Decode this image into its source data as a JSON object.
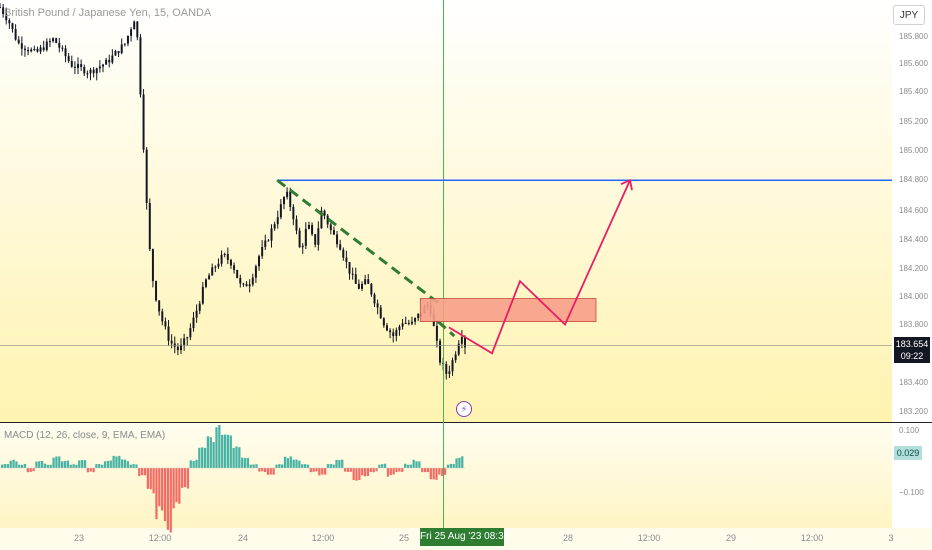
{
  "header": {
    "symbol_title": "British Pound / Japanese Yen, 15, OANDA",
    "currency_button": "JPY"
  },
  "price_tag": {
    "price": "183.654",
    "countdown": "09:22"
  },
  "macd": {
    "title": "MACD (12, 26, close, 9, EMA, EMA)",
    "value_tag": "0.029"
  },
  "crosshair_time_label": "Fri 25 Aug '23   08:30",
  "colors": {
    "bull": "#26a69a",
    "bear": "#ef5350",
    "candle": "#131722",
    "resistance": "#2962ff",
    "trendline": "#2e7d32",
    "zone_fill": "#f7a08a",
    "zone_border": "#c0392b",
    "projection": "#e91e63",
    "crosshair": "#4caf50"
  },
  "chart_data": [
    {
      "type": "candlestick",
      "symbol": "British Pound / Japanese Yen",
      "interval": "15",
      "source": "OANDA",
      "y_axis_ticks": [
        "185.800",
        "185.600",
        "185.400",
        "185.200",
        "185.000",
        "184.800",
        "184.600",
        "184.400",
        "184.200",
        "184.000",
        "183.800",
        "183.400",
        "183.200"
      ],
      "x_axis_ticks": [
        "23",
        "12:00",
        "24",
        "12:00",
        "25",
        "28",
        "12:00",
        "29",
        "12:00",
        "3"
      ],
      "ylim": [
        183.2,
        186.0
      ],
      "last_price": 183.654,
      "price_path": [
        {
          "t": 0,
          "p": 186.0
        },
        {
          "t": 0.5,
          "p": 185.9
        },
        {
          "t": 1,
          "p": 185.75
        },
        {
          "t": 2,
          "p": 185.68
        },
        {
          "t": 3,
          "p": 185.78
        },
        {
          "t": 4,
          "p": 185.6
        },
        {
          "t": 5,
          "p": 185.55
        },
        {
          "t": 6,
          "p": 185.62
        },
        {
          "t": 7,
          "p": 185.75
        },
        {
          "t": 7.6,
          "p": 185.95
        },
        {
          "t": 8,
          "p": 185.1
        },
        {
          "t": 8.3,
          "p": 184.4
        },
        {
          "t": 8.6,
          "p": 184.05
        },
        {
          "t": 9,
          "p": 183.85
        },
        {
          "t": 9.5,
          "p": 183.68
        },
        {
          "t": 10,
          "p": 183.62
        },
        {
          "t": 10.5,
          "p": 183.72
        },
        {
          "t": 11,
          "p": 183.9
        },
        {
          "t": 11.5,
          "p": 184.1
        },
        {
          "t": 12,
          "p": 184.2
        },
        {
          "t": 12.5,
          "p": 184.28
        },
        {
          "t": 13,
          "p": 184.22
        },
        {
          "t": 13.5,
          "p": 184.05
        },
        {
          "t": 14,
          "p": 184.1
        },
        {
          "t": 14.5,
          "p": 184.28
        },
        {
          "t": 15,
          "p": 184.4
        },
        {
          "t": 15.5,
          "p": 184.55
        },
        {
          "t": 16,
          "p": 184.72
        },
        {
          "t": 16.4,
          "p": 184.55
        },
        {
          "t": 16.8,
          "p": 184.3
        },
        {
          "t": 17.2,
          "p": 184.5
        },
        {
          "t": 17.6,
          "p": 184.35
        },
        {
          "t": 18,
          "p": 184.6
        },
        {
          "t": 18.5,
          "p": 184.45
        },
        {
          "t": 19,
          "p": 184.35
        },
        {
          "t": 19.5,
          "p": 184.18
        },
        {
          "t": 20,
          "p": 184.05
        },
        {
          "t": 20.5,
          "p": 184.1
        },
        {
          "t": 21,
          "p": 183.95
        },
        {
          "t": 21.5,
          "p": 183.8
        },
        {
          "t": 22,
          "p": 183.72
        },
        {
          "t": 22.5,
          "p": 183.82
        },
        {
          "t": 23,
          "p": 183.8
        },
        {
          "t": 23.5,
          "p": 183.88
        },
        {
          "t": 24,
          "p": 183.95
        },
        {
          "t": 24.3,
          "p": 183.75
        },
        {
          "t": 24.6,
          "p": 183.55
        },
        {
          "t": 25,
          "p": 183.45
        },
        {
          "t": 25.4,
          "p": 183.58
        },
        {
          "t": 25.8,
          "p": 183.75
        },
        {
          "t": 26,
          "p": 183.654
        }
      ],
      "annotations": {
        "resistance_level": 184.8,
        "trendline": {
          "from": 184.8,
          "to": 183.95
        },
        "demand_zone": {
          "low": 183.82,
          "high": 183.98
        },
        "projection_path": [
          183.78,
          183.6,
          184.1,
          183.8,
          184.8
        ]
      }
    },
    {
      "type": "bar",
      "name": "MACD (12, 26, close, 9, EMA, EMA)",
      "y_axis_ticks": [
        "0.100",
        "−0.100"
      ],
      "ylim": [
        -0.16,
        0.12
      ],
      "last_value": 0.029,
      "histogram": [
        0.01,
        0.02,
        0.01,
        -0.01,
        0.02,
        0.01,
        0.03,
        0.02,
        0.01,
        0.02,
        -0.01,
        0.01,
        0.02,
        0.03,
        0.02,
        0.01,
        -0.02,
        -0.06,
        -0.12,
        -0.15,
        -0.1,
        -0.05,
        0.02,
        0.05,
        0.08,
        0.1,
        0.09,
        0.06,
        0.03,
        0.01,
        -0.01,
        -0.02,
        0.01,
        0.03,
        0.02,
        0.01,
        -0.01,
        -0.02,
        0.01,
        0.02,
        -0.01,
        -0.03,
        -0.02,
        -0.01,
        0.01,
        -0.02,
        -0.01,
        0.01,
        0.02,
        -0.01,
        -0.03,
        -0.02,
        0.01,
        0.03
      ]
    }
  ]
}
